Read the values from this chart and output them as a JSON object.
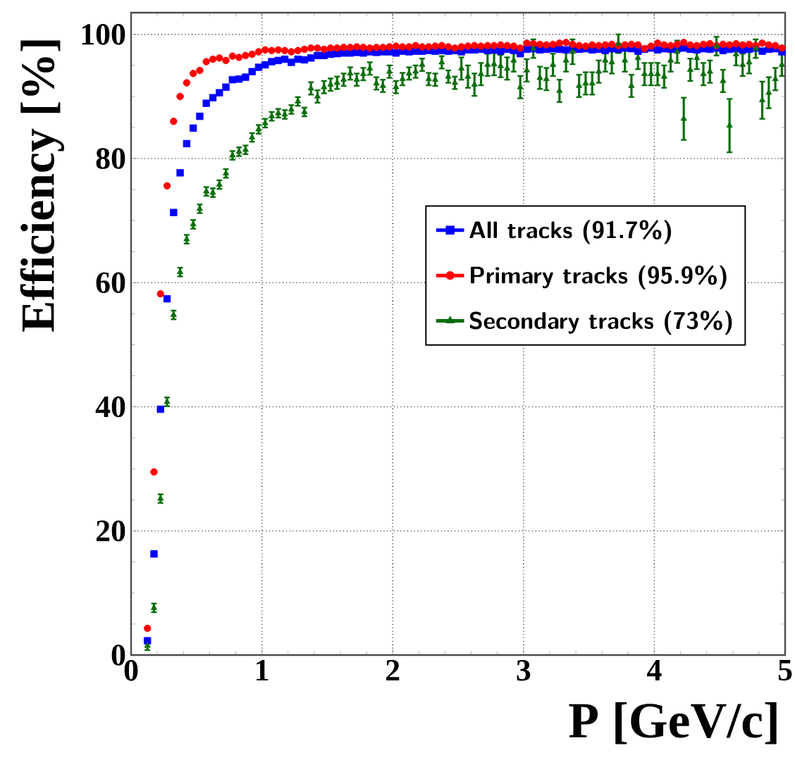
{
  "chart_data": {
    "type": "scatter",
    "xlabel": "P [GeV/c]",
    "ylabel": "Efficiency [%]",
    "x": [
      0.125,
      0.175,
      0.225,
      0.275,
      0.325,
      0.375,
      0.425,
      0.475,
      0.525,
      0.575,
      0.625,
      0.675,
      0.725,
      0.775,
      0.825,
      0.875,
      0.925,
      0.975,
      1.025,
      1.075,
      1.125,
      1.175,
      1.225,
      1.275,
      1.325,
      1.375,
      1.425,
      1.475,
      1.525,
      1.575,
      1.625,
      1.675,
      1.725,
      1.775,
      1.825,
      1.875,
      1.925,
      1.975,
      2.025,
      2.075,
      2.125,
      2.175,
      2.225,
      2.275,
      2.325,
      2.375,
      2.425,
      2.475,
      2.525,
      2.575,
      2.625,
      2.675,
      2.725,
      2.775,
      2.825,
      2.875,
      2.925,
      2.975,
      3.025,
      3.075,
      3.125,
      3.175,
      3.225,
      3.275,
      3.325,
      3.375,
      3.425,
      3.475,
      3.525,
      3.575,
      3.625,
      3.675,
      3.725,
      3.775,
      3.825,
      3.875,
      3.925,
      3.975,
      4.025,
      4.075,
      4.125,
      4.175,
      4.225,
      4.275,
      4.325,
      4.375,
      4.425,
      4.475,
      4.525,
      4.575,
      4.625,
      4.675,
      4.725,
      4.775,
      4.825,
      4.875,
      4.925,
      4.975
    ],
    "series": [
      {
        "name": "All tracks (91.7%)",
        "color": "#0000ff",
        "marker": "square",
        "values": [
          2.3,
          16.3,
          39.6,
          57.4,
          71.3,
          77.7,
          82.4,
          84.9,
          86.8,
          88.9,
          89.8,
          90.6,
          91.5,
          92.7,
          92.8,
          93.1,
          94,
          94.7,
          95.1,
          95.6,
          95.8,
          96,
          95.5,
          96,
          95.9,
          96.2,
          96.6,
          96.6,
          96.8,
          96.9,
          97,
          97,
          97.1,
          97,
          97.2,
          97.1,
          97.2,
          97.2,
          97,
          97.3,
          97.2,
          97.3,
          97.3,
          97.4,
          97.3,
          97.4,
          97.3,
          97.4,
          97.2,
          97.5,
          97.5,
          97.6,
          97.4,
          97.5,
          97.3,
          97.6,
          97.4,
          96.9,
          97.6,
          97.7,
          97.5,
          97.6,
          97.7,
          97.6,
          97.5,
          97.8,
          97.6,
          97.7,
          97.5,
          97.6,
          97.4,
          97.7,
          97.6,
          97.8,
          97.7,
          97.3,
          97.6,
          97.8,
          97.5,
          97.7,
          97.6,
          97.7,
          97.8,
          97.6,
          97.5,
          97.7,
          97.6,
          97.8,
          97.4,
          97.6,
          97.7,
          97.5,
          97.6,
          97.8,
          97.3,
          97.6,
          97.7,
          97.2
        ]
      },
      {
        "name": "Primary tracks (95.9%)",
        "color": "#ff0000",
        "marker": "circle",
        "values": [
          4.3,
          29.5,
          58.2,
          75.6,
          86,
          90,
          92.2,
          93.7,
          94.2,
          95.6,
          96,
          96.2,
          95.8,
          96.5,
          96.3,
          96.6,
          96.8,
          97.2,
          97.5,
          97.4,
          97.5,
          97.4,
          97.2,
          97.4,
          97.6,
          97.8,
          97.8,
          97.6,
          97.8,
          97.8,
          97.9,
          97.9,
          98,
          97.9,
          97.8,
          97.9,
          97.9,
          98,
          98.1,
          98,
          98,
          98.2,
          98,
          98,
          98.1,
          98.2,
          98,
          97.8,
          98,
          98.1,
          98.2,
          98.1,
          98.2,
          98.2,
          98.3,
          98.2,
          98.1,
          97.8,
          98.6,
          98.5,
          98.4,
          98.3,
          98.4,
          98.6,
          98.7,
          98.4,
          98.2,
          98.1,
          98.3,
          98.2,
          98.3,
          98.4,
          98.2,
          98.3,
          98.4,
          98.3,
          97.7,
          98.1,
          98.6,
          98.3,
          98.2,
          98.4,
          98.7,
          98.3,
          98.2,
          98.4,
          98.5,
          98.2,
          98.4,
          98.3,
          98.5,
          98.3,
          98.4,
          98.2,
          98.6,
          98.3,
          98.2,
          97.8
        ]
      },
      {
        "name": "Secondary tracks (73%)",
        "color": "#0b6e0b",
        "marker": "triangle",
        "values": [
          1.5,
          7.6,
          25.2,
          40.8,
          54.8,
          61.7,
          67,
          69.4,
          71.9,
          74.7,
          74.5,
          75.8,
          77.6,
          80.5,
          81.1,
          81.4,
          83.4,
          84.7,
          85.7,
          86.8,
          87.3,
          87.1,
          87.9,
          89.2,
          87.5,
          91.3,
          90,
          91.5,
          91.9,
          92.2,
          92.7,
          93.7,
          92.7,
          93.6,
          94.5,
          92.1,
          91.7,
          94,
          91.5,
          92.8,
          93.7,
          94,
          95.1,
          92.8,
          92.7,
          95.5,
          93.2,
          92.2,
          94.5,
          93.2,
          91.9,
          93.6,
          95.1,
          95.2,
          94.9,
          94.5,
          95.8,
          91.5,
          94.2,
          97.7,
          93,
          92.8,
          95.1,
          90.9,
          95.8,
          97.2,
          91.7,
          92.1,
          92.1,
          94,
          95.8,
          95.5,
          98.5,
          95.8,
          91.7,
          96.2,
          93.6,
          93.6,
          93.6,
          93.2,
          95.8,
          97.2,
          86.4,
          94.3,
          96.2,
          93.6,
          94,
          98.1,
          92.5,
          85.3,
          96.8,
          95.1,
          95.5,
          97.7,
          89.4,
          90.6,
          92.8,
          95.1
        ],
        "errors": [
          0.7,
          0.7,
          0.7,
          0.7,
          0.7,
          0.7,
          0.7,
          0.7,
          0.7,
          0.7,
          0.7,
          0.7,
          0.7,
          0.7,
          0.7,
          0.7,
          0.7,
          0.7,
          0.7,
          0.7,
          0.7,
          0.7,
          0.7,
          0.7,
          0.7,
          1,
          1,
          1,
          1,
          1,
          1,
          1,
          1,
          1,
          1,
          1,
          1,
          1,
          1,
          1,
          1,
          1,
          1,
          1,
          1,
          1,
          1,
          1,
          1.8,
          1.8,
          1.8,
          1.8,
          1.8,
          1.8,
          1.8,
          1.8,
          1.8,
          1.8,
          1.8,
          1.5,
          1.8,
          1.8,
          1.8,
          1.8,
          1.8,
          2,
          1.8,
          1.8,
          1.8,
          1.8,
          1.8,
          1.8,
          1.5,
          1.8,
          1.8,
          1.8,
          1.8,
          1.8,
          1.8,
          1.8,
          1.8,
          1.8,
          3.4,
          1.8,
          1.8,
          1.8,
          1.8,
          1.5,
          1.8,
          4.3,
          1.8,
          1.8,
          1.8,
          1.5,
          3,
          2.5,
          1.8,
          1.8
        ]
      }
    ],
    "xlim": [
      0,
      5
    ],
    "ylim": [
      0,
      103.5
    ],
    "xticks": [
      0,
      1,
      2,
      3,
      4,
      5
    ],
    "yticks": [
      0,
      20,
      40,
      60,
      80,
      100
    ],
    "grid": true,
    "legend": "right"
  }
}
